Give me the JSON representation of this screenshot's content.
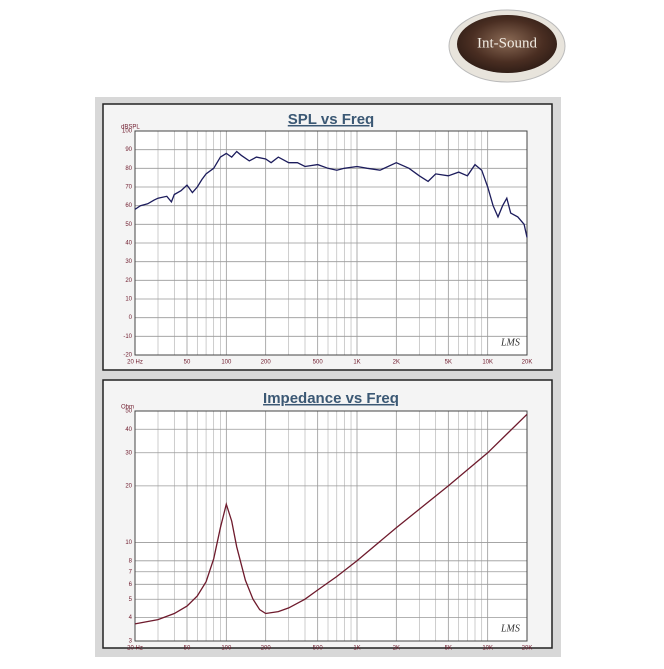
{
  "logo": {
    "text": "Int-Sound"
  },
  "chart_data": [
    {
      "type": "line",
      "title": "SPL vs Freq",
      "y_unit": "dBSPL",
      "annotation": "LMS",
      "log_x": true,
      "log_y": false,
      "grid": true,
      "color": "#1c1c5c",
      "x": [
        20,
        22,
        25,
        28,
        30,
        35,
        38,
        40,
        45,
        50,
        55,
        60,
        65,
        70,
        80,
        90,
        100,
        110,
        120,
        130,
        150,
        170,
        200,
        220,
        250,
        300,
        350,
        400,
        500,
        600,
        700,
        800,
        1000,
        1200,
        1500,
        2000,
        2500,
        3000,
        3500,
        4000,
        5000,
        6000,
        7000,
        8000,
        9000,
        10000,
        11000,
        12000,
        13000,
        14000,
        15000,
        17000,
        19000,
        20000
      ],
      "values": [
        58,
        60,
        61,
        63,
        64,
        65,
        62,
        66,
        68,
        71,
        67,
        70,
        74,
        77,
        80,
        86,
        88,
        86,
        89,
        87,
        84,
        86,
        85,
        83,
        86,
        83,
        83,
        81,
        82,
        80,
        79,
        80,
        81,
        80,
        79,
        83,
        80,
        76,
        73,
        77,
        76,
        78,
        76,
        82,
        79,
        70,
        60,
        54,
        60,
        64,
        56,
        54,
        50,
        43
      ],
      "xlim": [
        20,
        20000
      ],
      "ylim": [
        -20,
        100
      ],
      "xticks": [
        {
          "value": 20,
          "label": "20 Hz"
        },
        50,
        100,
        200,
        500,
        {
          "value": 1000,
          "label": "1K"
        },
        {
          "value": 2000,
          "label": "2K"
        },
        {
          "value": 5000,
          "label": "5K"
        },
        {
          "value": 10000,
          "label": "10K"
        },
        {
          "value": 20000,
          "label": "20K"
        }
      ],
      "xminor": [
        30,
        40,
        60,
        70,
        80,
        90,
        300,
        400,
        600,
        700,
        800,
        900,
        3000,
        4000,
        6000,
        7000,
        8000,
        9000
      ],
      "yticks": [
        -20,
        -10,
        0,
        10,
        20,
        30,
        40,
        50,
        60,
        70,
        80,
        90,
        100
      ]
    },
    {
      "type": "line",
      "title": "Impedance vs Freq",
      "y_unit": "Ohm",
      "annotation": "LMS",
      "log_x": true,
      "log_y": true,
      "grid": true,
      "color": "#6e1a2c",
      "x": [
        20,
        30,
        40,
        50,
        60,
        70,
        80,
        90,
        100,
        110,
        120,
        140,
        160,
        180,
        200,
        250,
        300,
        400,
        500,
        700,
        1000,
        2000,
        5000,
        10000,
        20000
      ],
      "values": [
        3.7,
        3.9,
        4.2,
        4.6,
        5.2,
        6.2,
        8.2,
        12,
        16,
        13,
        9.5,
        6.3,
        5.0,
        4.4,
        4.2,
        4.3,
        4.5,
        5.0,
        5.6,
        6.6,
        8,
        12,
        20,
        30,
        48
      ],
      "xlim": [
        20,
        20000
      ],
      "ylim": [
        3,
        50
      ],
      "xticks": [
        {
          "value": 20,
          "label": "20 Hz"
        },
        50,
        100,
        200,
        500,
        {
          "value": 1000,
          "label": "1K"
        },
        {
          "value": 2000,
          "label": "2K"
        },
        {
          "value": 5000,
          "label": "5K"
        },
        {
          "value": 10000,
          "label": "10K"
        },
        {
          "value": 20000,
          "label": "20K"
        }
      ],
      "xminor": [
        30,
        40,
        60,
        70,
        80,
        90,
        300,
        400,
        600,
        700,
        800,
        900,
        3000,
        4000,
        6000,
        7000,
        8000,
        9000
      ],
      "yticks": [
        3,
        4,
        5,
        6,
        7,
        8,
        10,
        20,
        30,
        40,
        50
      ]
    }
  ]
}
